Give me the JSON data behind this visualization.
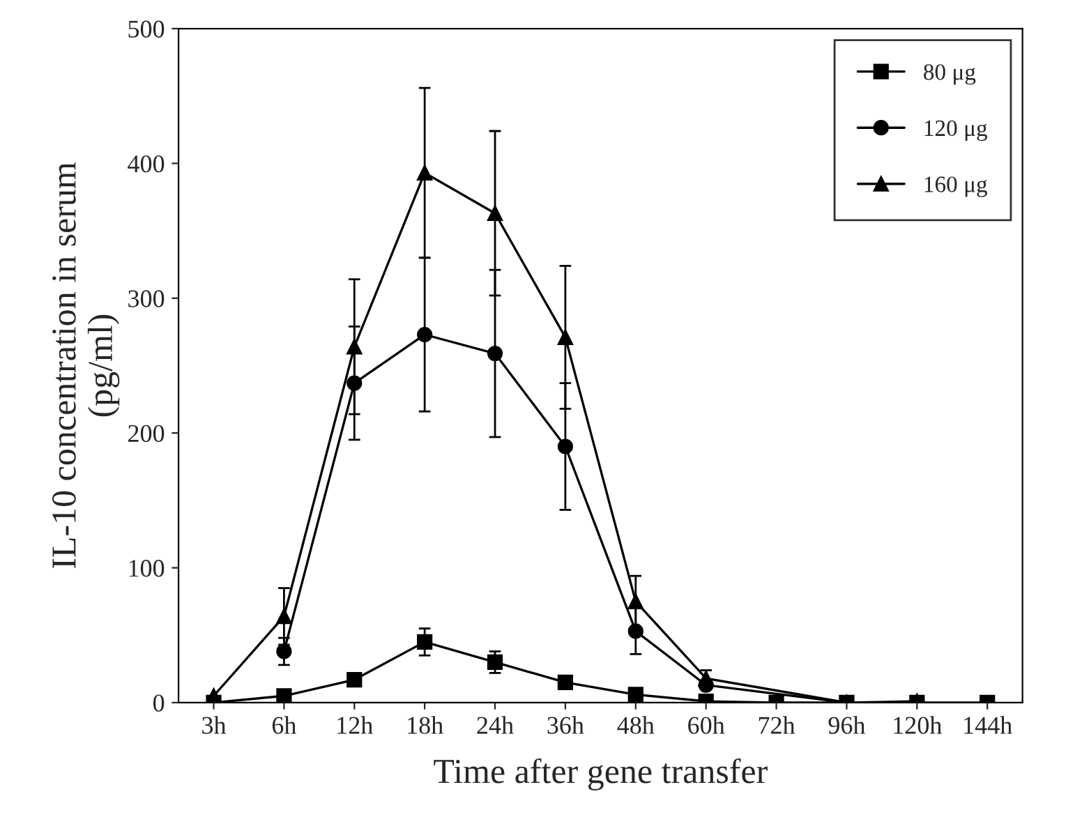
{
  "chart_data": {
    "type": "line",
    "xlabel": "Time after gene transfer",
    "ylabel": "IL-10 concentration in serum\n(pg/ml)",
    "categories": [
      "3h",
      "6h",
      "12h",
      "18h",
      "24h",
      "36h",
      "48h",
      "60h",
      "72h",
      "96h",
      "120h",
      "144h"
    ],
    "ylim": [
      0,
      500
    ],
    "yticks": [
      0,
      100,
      200,
      300,
      400,
      500
    ],
    "grid": false,
    "legend": "top right",
    "series": [
      {
        "name": "80 μg",
        "color": "#000000",
        "marker": "square",
        "values": [
          0,
          5,
          17,
          45,
          30,
          15,
          6,
          1,
          0,
          0,
          0,
          0
        ],
        "errors": [
          null,
          null,
          null,
          10,
          8,
          null,
          null,
          null,
          null,
          null,
          null,
          null
        ]
      },
      {
        "name": "120 μg",
        "color": "#000000",
        "marker": "circle",
        "values": [
          null,
          38,
          237,
          273,
          259,
          190,
          53,
          13,
          null,
          0,
          0,
          null
        ],
        "errors": [
          null,
          10,
          42,
          57,
          62,
          47,
          17,
          null,
          null,
          null,
          null,
          null
        ]
      },
      {
        "name": "160 μg",
        "color": "#000000",
        "marker": "triangle",
        "values": [
          5,
          64,
          264,
          393,
          363,
          271,
          75,
          18,
          null,
          0,
          1,
          null
        ],
        "errors": [
          null,
          21,
          50,
          63,
          61,
          53,
          19,
          6,
          null,
          null,
          null,
          null
        ]
      }
    ]
  }
}
